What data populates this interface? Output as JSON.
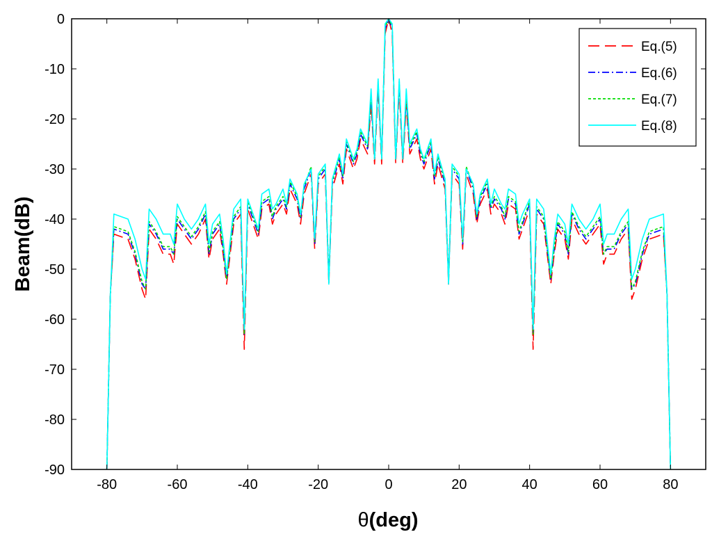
{
  "chart_data": {
    "type": "line",
    "title": "",
    "xlabel_symbol": "θ",
    "xlabel_unit": "(deg)",
    "ylabel": "Beam(dB)",
    "xlim": [
      -90,
      90
    ],
    "ylim": [
      -90,
      0
    ],
    "xticks": [
      -80,
      -60,
      -40,
      -20,
      0,
      20,
      40,
      60,
      80
    ],
    "yticks": [
      0,
      -10,
      -20,
      -30,
      -40,
      -50,
      -60,
      -70,
      -80,
      -90
    ],
    "grid": false,
    "legend_position": "top-right",
    "x": [
      -80,
      -79,
      -78,
      -76,
      -74,
      -72,
      -70,
      -69,
      -68,
      -66,
      -64,
      -62,
      -61,
      -60,
      -58,
      -56,
      -54,
      -52,
      -51,
      -50,
      -48,
      -47,
      -46,
      -44,
      -42,
      -41,
      -40,
      -38,
      -37,
      -36,
      -34,
      -33,
      -32,
      -30,
      -29,
      -28,
      -26,
      -25,
      -24,
      -22,
      -21,
      -20,
      -18,
      -17,
      -16,
      -14,
      -13,
      -12,
      -10,
      -9,
      -8,
      -6,
      -5,
      -4,
      -3,
      -2,
      -1,
      0,
      1,
      2,
      3,
      4,
      5,
      6,
      8,
      9,
      10,
      12,
      13,
      14,
      16,
      17,
      18,
      20,
      21,
      22,
      24,
      25,
      26,
      28,
      29,
      30,
      32,
      33,
      34,
      36,
      37,
      38,
      40,
      41,
      42,
      44,
      46,
      47,
      48,
      50,
      51,
      52,
      54,
      56,
      58,
      60,
      61,
      62,
      64,
      66,
      68,
      69,
      70,
      72,
      74,
      76,
      78,
      79,
      80
    ],
    "series": [
      {
        "name": "Eq.(5)",
        "color": "#ff0000",
        "dash": "long-dash",
        "values": [
          -90,
          -55,
          -43,
          -43.5,
          -44,
          -48,
          -54,
          -56,
          -42,
          -44,
          -47,
          -47,
          -49,
          -41,
          -43,
          -45,
          -43,
          -40,
          -48,
          -44,
          -42,
          -47,
          -53,
          -41,
          -39,
          -66,
          -38,
          -42,
          -44,
          -38,
          -37,
          -41,
          -39,
          -37,
          -39,
          -34,
          -37,
          -41,
          -35,
          -31,
          -46,
          -33,
          -31,
          -53,
          -34,
          -29,
          -33,
          -26,
          -30,
          -28,
          -24,
          -27,
          -17,
          -29,
          -14,
          -29,
          -3,
          0,
          -3,
          -29,
          -14,
          -29,
          -17,
          -27,
          -24,
          -28,
          -30,
          -26,
          -33,
          -29,
          -34,
          -53,
          -31,
          -33,
          -46,
          -31,
          -35,
          -41,
          -37,
          -34,
          -39,
          -37,
          -39,
          -41,
          -37,
          -38,
          -44,
          -42,
          -38,
          -66,
          -39,
          -41,
          -53,
          -47,
          -42,
          -44,
          -48,
          -40,
          -43,
          -45,
          -43,
          -41,
          -49,
          -47,
          -47,
          -44,
          -42,
          -56,
          -54,
          -48,
          -44,
          -43.5,
          -43,
          -55,
          -90
        ]
      },
      {
        "name": "Eq.(6)",
        "color": "#0000ff",
        "dash": "dash-dot",
        "values": [
          -90,
          -55,
          -42,
          -42.5,
          -43,
          -47,
          -53,
          -54,
          -41,
          -43,
          -46,
          -46,
          -47,
          -40,
          -42,
          -44,
          -42,
          -39,
          -47,
          -43,
          -41,
          -46,
          -52,
          -40,
          -38,
          -63,
          -37,
          -41,
          -43,
          -37,
          -36,
          -40,
          -38,
          -36,
          -38,
          -33,
          -36,
          -40,
          -34,
          -30,
          -45,
          -32,
          -30,
          -52,
          -33,
          -28,
          -32,
          -25,
          -29,
          -27,
          -23,
          -26,
          -16,
          -28,
          -13,
          -28,
          -2,
          0,
          -2,
          -28,
          -13,
          -28,
          -16,
          -26,
          -23,
          -27,
          -29,
          -25,
          -32,
          -28,
          -33,
          -52,
          -30,
          -32,
          -45,
          -30,
          -34,
          -40,
          -36,
          -33,
          -38,
          -36,
          -38,
          -40,
          -36,
          -37,
          -43,
          -41,
          -37,
          -63,
          -38,
          -40,
          -52,
          -46,
          -41,
          -43,
          -47,
          -39,
          -42,
          -44,
          -42,
          -40,
          -47,
          -46,
          -46,
          -43,
          -41,
          -54,
          -53,
          -47,
          -43,
          -42.5,
          -42,
          -55,
          -90
        ]
      },
      {
        "name": "Eq.(7)",
        "color": "#00dd00",
        "dash": "dotted",
        "values": [
          -90,
          -55,
          -41.5,
          -42,
          -42.5,
          -46.5,
          -52.5,
          -54,
          -40.5,
          -42.5,
          -45.5,
          -45.5,
          -47,
          -39.5,
          -41.5,
          -43.5,
          -41.5,
          -38.5,
          -46.5,
          -42.5,
          -40.5,
          -45.5,
          -52,
          -39.5,
          -37.5,
          -63,
          -36.5,
          -40.5,
          -42.5,
          -36.5,
          -35.5,
          -39.5,
          -37.5,
          -35.5,
          -37.5,
          -32.5,
          -35.5,
          -39.5,
          -33.5,
          -29.5,
          -44.5,
          -31.5,
          -29.5,
          -52,
          -32.5,
          -27.5,
          -31.5,
          -24.5,
          -28.5,
          -26.5,
          -22.5,
          -25.5,
          -15.5,
          -28,
          -12.5,
          -28,
          -1.5,
          0,
          -1.5,
          -28,
          -12.5,
          -28,
          -15.5,
          -25.5,
          -22.5,
          -26.5,
          -28.5,
          -24.5,
          -31.5,
          -27.5,
          -32.5,
          -52,
          -29.5,
          -31.5,
          -44.5,
          -29.5,
          -33.5,
          -39.5,
          -35.5,
          -32.5,
          -37.5,
          -35.5,
          -37.5,
          -39.5,
          -35.5,
          -36.5,
          -42.5,
          -40.5,
          -36.5,
          -63,
          -37.5,
          -39.5,
          -52,
          -45.5,
          -40.5,
          -42.5,
          -46.5,
          -38.5,
          -41.5,
          -43.5,
          -41.5,
          -39.5,
          -47,
          -45.5,
          -45.5,
          -42.5,
          -40.5,
          -54,
          -52.5,
          -46.5,
          -42.5,
          -42,
          -41.5,
          -55,
          -90
        ]
      },
      {
        "name": "Eq.(8)",
        "color": "#00ffff",
        "dash": "solid",
        "values": [
          -90,
          -55,
          -39,
          -39.5,
          -40,
          -44,
          -50,
          -52,
          -38,
          -40,
          -43,
          -43,
          -45,
          -37,
          -40,
          -42,
          -40,
          -37,
          -45,
          -41,
          -39,
          -44,
          -51,
          -38,
          -36,
          -62,
          -36,
          -40,
          -42,
          -35,
          -34,
          -38,
          -37,
          -34,
          -37,
          -32,
          -35,
          -39,
          -33,
          -30,
          -44,
          -31,
          -29,
          -53,
          -32,
          -27,
          -31,
          -24,
          -28,
          -26,
          -22,
          -25,
          -14,
          -28,
          -12,
          -28,
          -1,
          0,
          -1,
          -28,
          -12,
          -28,
          -14,
          -25,
          -22,
          -26,
          -28,
          -24,
          -31,
          -27,
          -32,
          -53,
          -29,
          -31,
          -44,
          -30,
          -33,
          -39,
          -35,
          -32,
          -37,
          -34,
          -37,
          -38,
          -34,
          -35,
          -41,
          -39,
          -36,
          -62,
          -36,
          -38,
          -51,
          -44,
          -39,
          -41,
          -45,
          -37,
          -40,
          -42,
          -40,
          -37,
          -45,
          -43,
          -43,
          -40,
          -38,
          -52,
          -50,
          -44,
          -40,
          -39.5,
          -39,
          -55,
          -90
        ]
      }
    ]
  }
}
